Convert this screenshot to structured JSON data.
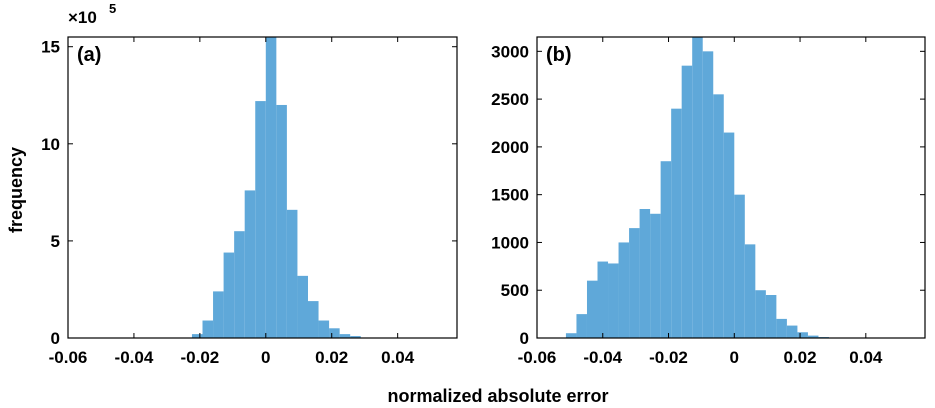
{
  "figure": {
    "ylabel": "frequency",
    "xlabel": "normalized absolute error"
  },
  "chart_data": [
    {
      "type": "bar",
      "panel_label": "(a)",
      "bar_color": "#5fa8d9",
      "xlim": [
        -0.06,
        0.058
      ],
      "ylim": [
        0,
        15.5
      ],
      "y_multiplier": "×10",
      "y_exponent": "5",
      "xticks": [
        "-0.06",
        "-0.04",
        "-0.02",
        "0",
        "0.02",
        "0.04"
      ],
      "yticks": [
        "0",
        "5",
        "10",
        "15"
      ],
      "bin_width": 0.0032,
      "bins": [
        {
          "x": -0.0208,
          "v": 0.2
        },
        {
          "x": -0.0176,
          "v": 0.9
        },
        {
          "x": -0.0144,
          "v": 2.4
        },
        {
          "x": -0.0112,
          "v": 4.4
        },
        {
          "x": -0.008,
          "v": 5.5
        },
        {
          "x": -0.0048,
          "v": 7.6
        },
        {
          "x": -0.0016,
          "v": 12.2
        },
        {
          "x": 0.0016,
          "v": 15.5
        },
        {
          "x": 0.0048,
          "v": 12.0
        },
        {
          "x": 0.008,
          "v": 6.6
        },
        {
          "x": 0.0112,
          "v": 3.2
        },
        {
          "x": 0.0144,
          "v": 1.9
        },
        {
          "x": 0.0176,
          "v": 0.9
        },
        {
          "x": 0.0208,
          "v": 0.5
        },
        {
          "x": 0.024,
          "v": 0.2
        },
        {
          "x": 0.0272,
          "v": 0.1
        }
      ]
    },
    {
      "type": "bar",
      "panel_label": "(b)",
      "bar_color": "#5fa8d9",
      "xlim": [
        -0.06,
        0.058
      ],
      "ylim": [
        0,
        3150
      ],
      "xticks": [
        "-0.06",
        "-0.04",
        "-0.02",
        "0",
        "0.02",
        "0.04"
      ],
      "yticks": [
        "0",
        "500",
        "1000",
        "1500",
        "2000",
        "2500",
        "3000"
      ],
      "bin_width": 0.0032,
      "bins": [
        {
          "x": -0.0496,
          "v": 50
        },
        {
          "x": -0.0464,
          "v": 250
        },
        {
          "x": -0.0432,
          "v": 600
        },
        {
          "x": -0.04,
          "v": 800
        },
        {
          "x": -0.0368,
          "v": 780
        },
        {
          "x": -0.0336,
          "v": 1000
        },
        {
          "x": -0.0304,
          "v": 1150
        },
        {
          "x": -0.0272,
          "v": 1350
        },
        {
          "x": -0.024,
          "v": 1300
        },
        {
          "x": -0.0208,
          "v": 1850
        },
        {
          "x": -0.0176,
          "v": 2400
        },
        {
          "x": -0.0144,
          "v": 2850
        },
        {
          "x": -0.0112,
          "v": 3150
        },
        {
          "x": -0.008,
          "v": 3000
        },
        {
          "x": -0.0048,
          "v": 2550
        },
        {
          "x": -0.0016,
          "v": 2150
        },
        {
          "x": 0.0016,
          "v": 1500
        },
        {
          "x": 0.0048,
          "v": 980
        },
        {
          "x": 0.008,
          "v": 500
        },
        {
          "x": 0.0112,
          "v": 450
        },
        {
          "x": 0.0144,
          "v": 200
        },
        {
          "x": 0.0176,
          "v": 130
        },
        {
          "x": 0.0208,
          "v": 60
        },
        {
          "x": 0.024,
          "v": 25
        },
        {
          "x": 0.0272,
          "v": 10
        }
      ]
    }
  ]
}
